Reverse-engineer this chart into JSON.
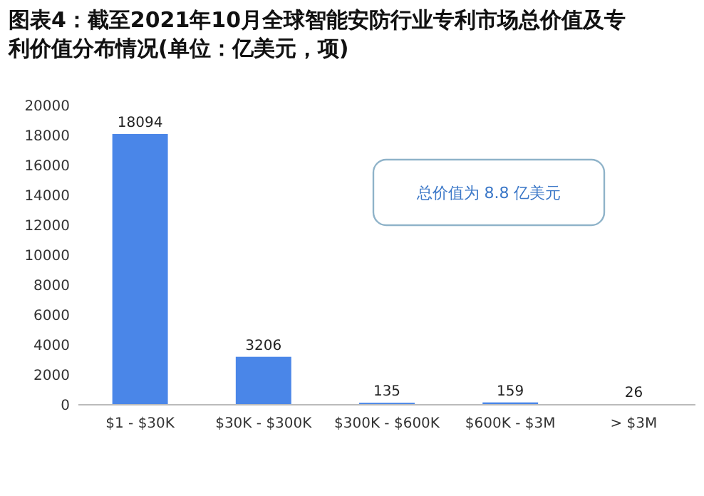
{
  "chart_data": {
    "type": "bar",
    "title": "图表4：截至2021年10月全球智能安防行业专利市场总价值及专利价值分布情况(单位：亿美元，项)",
    "categories": [
      "$1 - $30K",
      "$30K - $300K",
      "$300K - $600K",
      "$600K - $3M",
      "> $3M"
    ],
    "values": [
      18094,
      3206,
      135,
      159,
      26
    ],
    "color": "#4a86e8",
    "ylim": [
      0,
      20000
    ],
    "yticks": [
      0,
      2000,
      4000,
      6000,
      8000,
      10000,
      12000,
      14000,
      16000,
      18000,
      20000
    ],
    "grid": false,
    "data_labels": true,
    "annotations": [
      "总价值为 8.8 亿美元"
    ]
  }
}
